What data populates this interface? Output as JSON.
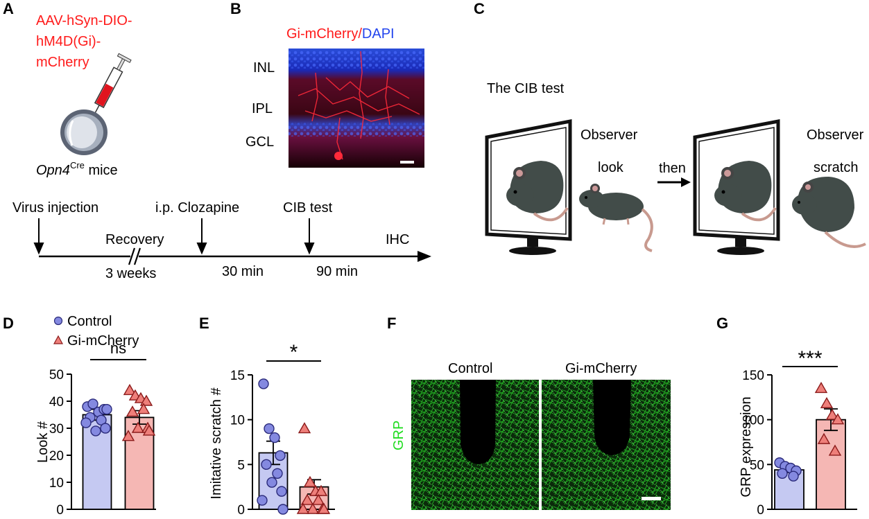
{
  "panel_labels": {
    "A": "A",
    "B": "B",
    "C": "C",
    "D": "D",
    "E": "E",
    "F": "F",
    "G": "G"
  },
  "panelA": {
    "virus_line1": "AAV-hSyn-DIO-",
    "virus_line2": "hM4D(Gi)-",
    "virus_line3": "mCherry",
    "mice_gene": "Opn4",
    "mice_sup": "Cre",
    "mice_suffix": " mice",
    "timeline": {
      "virus_injection": "Virus injection",
      "recovery": "Recovery",
      "three_weeks": "3 weeks",
      "clozapine": "i.p. Clozapine",
      "thirty_min": "30 min",
      "cib_test": "CIB test",
      "ninety_min": "90 min",
      "ihc": "IHC"
    },
    "colors": {
      "virus_text": "#ff1a1a"
    }
  },
  "panelB": {
    "title_red": "Gi-mCherry",
    "title_sep": "/",
    "title_blue": "DAPI",
    "layers": [
      "INL",
      "IPL",
      "GCL"
    ]
  },
  "panelC": {
    "title": "The CIB test",
    "observer_1": "Observer",
    "look": "look",
    "then": "then",
    "observer_2": "Observer",
    "scratch": "scratch"
  },
  "panelF": {
    "control": "Control",
    "gi": "Gi-mCherry",
    "ylabel": "GRP"
  },
  "legend": {
    "control": "Control",
    "gi": "Gi-mCherry"
  },
  "colors": {
    "control_bar": "#c5c9f2",
    "control_point": "#8489e0",
    "gi_bar": "#f5b7b4",
    "gi_point": "#ee7f7a",
    "green": "#1fdc1f"
  },
  "chart_data": [
    {
      "type": "bar",
      "panel": "D",
      "ylabel": "Look #",
      "ylim": [
        0,
        50
      ],
      "yticks": [
        0,
        10,
        20,
        30,
        40,
        50
      ],
      "significance": "ns",
      "series": [
        {
          "name": "Control",
          "mean": 35,
          "sem": 2,
          "points": [
            38,
            39,
            36,
            37,
            34,
            33,
            29,
            30,
            32,
            37
          ]
        },
        {
          "name": "Gi-mCherry",
          "mean": 34,
          "sem": 2.5,
          "points": [
            44,
            42,
            41,
            40,
            36,
            37,
            30,
            30,
            27,
            29
          ]
        }
      ]
    },
    {
      "type": "bar",
      "panel": "E",
      "ylabel": "Imitative scratch #",
      "ylim": [
        0,
        15
      ],
      "yticks": [
        0,
        5,
        10,
        15
      ],
      "significance": "*",
      "series": [
        {
          "name": "Control",
          "mean": 6.3,
          "sem": 1.3,
          "points": [
            14,
            9,
            8,
            6,
            5,
            4,
            3,
            2,
            1,
            0
          ]
        },
        {
          "name": "Gi-mCherry",
          "mean": 2.5,
          "sem": 0.8,
          "points": [
            9,
            3,
            2,
            2,
            1,
            1,
            0,
            0,
            0,
            0
          ]
        }
      ]
    },
    {
      "type": "bar",
      "panel": "G",
      "ylabel": "GRP expression",
      "ylim": [
        0,
        150
      ],
      "yticks": [
        0,
        50,
        100,
        150
      ],
      "significance": "***",
      "series": [
        {
          "name": "Control",
          "mean": 44,
          "sem": 3,
          "points": [
            52,
            48,
            46,
            43,
            40,
            37
          ]
        },
        {
          "name": "Gi-mCherry",
          "mean": 100,
          "sem": 12,
          "points": [
            135,
            118,
            105,
            100,
            78,
            65
          ]
        }
      ]
    }
  ]
}
